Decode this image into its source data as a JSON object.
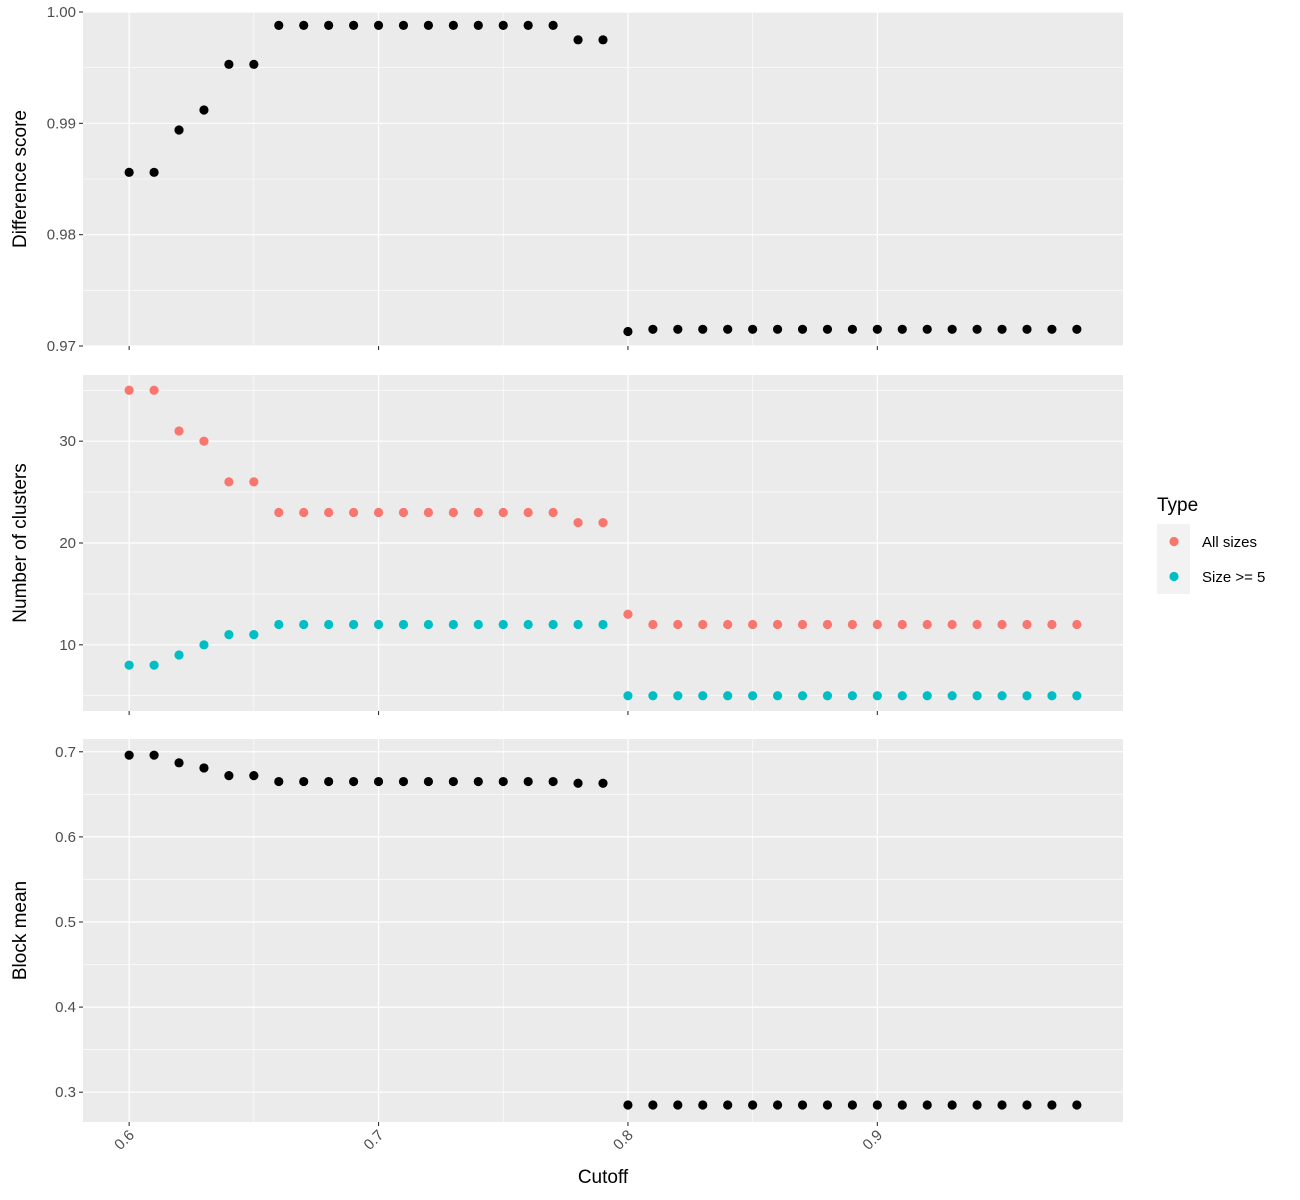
{
  "chart_data": {
    "type": "scatter",
    "xlabel": "Cutoff",
    "x_ticks": [
      "0.6",
      "0.7",
      "0.8",
      "0.9"
    ],
    "xlim": [
      0.5815,
      0.9985
    ],
    "x": [
      0.6,
      0.61,
      0.62,
      0.63,
      0.64,
      0.65,
      0.66,
      0.67,
      0.68,
      0.69,
      0.7,
      0.71,
      0.72,
      0.73,
      0.74,
      0.75,
      0.76,
      0.77,
      0.78,
      0.79,
      0.8,
      0.81,
      0.82,
      0.83,
      0.84,
      0.85,
      0.86,
      0.87,
      0.88,
      0.89,
      0.9,
      0.91,
      0.92,
      0.93,
      0.94,
      0.95,
      0.96,
      0.97,
      0.98
    ],
    "legend": {
      "title": "Type",
      "position": "right",
      "entries": [
        {
          "label": "All sizes",
          "color": "#F8766D"
        },
        {
          "label": "Size >= 5",
          "color": "#00BFC4"
        }
      ]
    },
    "panels": [
      {
        "ylabel": "Difference score",
        "ylim": [
          0.97,
          1.0
        ],
        "y_ticks": [
          "0.97",
          "0.98",
          "0.99",
          "1.00"
        ],
        "grid": true,
        "series": [
          {
            "color": "#000000",
            "values": [
              0.9856,
              0.9856,
              0.9894,
              0.9912,
              0.9953,
              0.9953,
              0.9988,
              0.9988,
              0.9988,
              0.9988,
              0.9988,
              0.9988,
              0.9988,
              0.9988,
              0.9988,
              0.9988,
              0.9988,
              0.9988,
              0.9975,
              0.9975,
              0.9713,
              0.9715,
              0.9715,
              0.9715,
              0.9715,
              0.9715,
              0.9715,
              0.9715,
              0.9715,
              0.9715,
              0.9715,
              0.9715,
              0.9715,
              0.9715,
              0.9715,
              0.9715,
              0.9715,
              0.9715,
              0.9715
            ]
          }
        ]
      },
      {
        "ylabel": "Number of clusters",
        "ylim": [
          3.5,
          36.5
        ],
        "y_ticks": [
          "10",
          "20",
          "30"
        ],
        "grid": true,
        "series": [
          {
            "name": "All sizes",
            "color": "#F8766D",
            "values": [
              35,
              35,
              31,
              30,
              26,
              26,
              23,
              23,
              23,
              23,
              23,
              23,
              23,
              23,
              23,
              23,
              23,
              23,
              22,
              22,
              13,
              12,
              12,
              12,
              12,
              12,
              12,
              12,
              12,
              12,
              12,
              12,
              12,
              12,
              12,
              12,
              12,
              12,
              12
            ]
          },
          {
            "name": "Size >= 5",
            "color": "#00BFC4",
            "values": [
              8,
              8,
              9,
              10,
              11,
              11,
              12,
              12,
              12,
              12,
              12,
              12,
              12,
              12,
              12,
              12,
              12,
              12,
              12,
              12,
              5,
              5,
              5,
              5,
              5,
              5,
              5,
              5,
              5,
              5,
              5,
              5,
              5,
              5,
              5,
              5,
              5,
              5,
              5
            ]
          }
        ]
      },
      {
        "ylabel": "Block mean",
        "ylim": [
          0.265,
          0.715
        ],
        "y_ticks": [
          "0.3",
          "0.4",
          "0.5",
          "0.6",
          "0.7"
        ],
        "grid": true,
        "series": [
          {
            "color": "#000000",
            "values": [
              0.696,
              0.696,
              0.687,
              0.681,
              0.672,
              0.672,
              0.665,
              0.665,
              0.665,
              0.665,
              0.665,
              0.665,
              0.665,
              0.665,
              0.665,
              0.665,
              0.665,
              0.665,
              0.663,
              0.663,
              0.285,
              0.285,
              0.285,
              0.285,
              0.285,
              0.285,
              0.285,
              0.285,
              0.285,
              0.285,
              0.285,
              0.285,
              0.285,
              0.285,
              0.285,
              0.285,
              0.285,
              0.285,
              0.285
            ]
          }
        ]
      }
    ]
  }
}
